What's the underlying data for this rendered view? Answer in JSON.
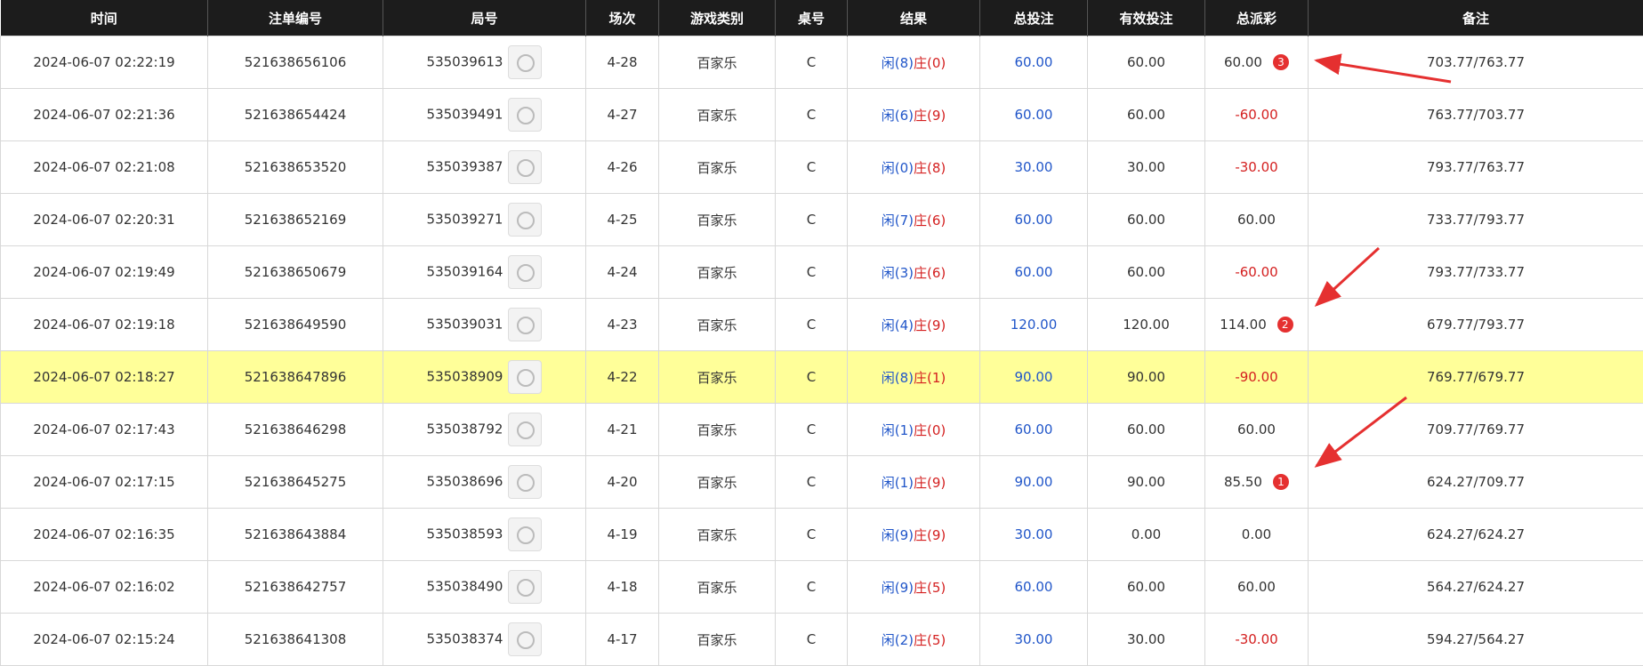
{
  "header": [
    "时间",
    "注单编号",
    "局号",
    "场次",
    "游戏类别",
    "桌号",
    "结果",
    "总投注",
    "有效投注",
    "总派彩",
    "备注"
  ],
  "rows": [
    {
      "time": "2024-06-07 02:22:19",
      "order": "521638656106",
      "round": "535039613",
      "session": "4-28",
      "game": "百家乐",
      "table": "C",
      "player": "闲(8)",
      "banker": "庄(0)",
      "bet": "60.00",
      "valid": "60.00",
      "payout": "60.00",
      "badge": "3",
      "note": "703.77/763.77"
    },
    {
      "time": "2024-06-07 02:21:36",
      "order": "521638654424",
      "round": "535039491",
      "session": "4-27",
      "game": "百家乐",
      "table": "C",
      "player": "闲(6)",
      "banker": "庄(9)",
      "bet": "60.00",
      "valid": "60.00",
      "payout": "-60.00",
      "note": "763.77/703.77"
    },
    {
      "time": "2024-06-07 02:21:08",
      "order": "521638653520",
      "round": "535039387",
      "session": "4-26",
      "game": "百家乐",
      "table": "C",
      "player": "闲(0)",
      "banker": "庄(8)",
      "bet": "30.00",
      "valid": "30.00",
      "payout": "-30.00",
      "note": "793.77/763.77"
    },
    {
      "time": "2024-06-07 02:20:31",
      "order": "521638652169",
      "round": "535039271",
      "session": "4-25",
      "game": "百家乐",
      "table": "C",
      "player": "闲(7)",
      "banker": "庄(6)",
      "bet": "60.00",
      "valid": "60.00",
      "payout": "60.00",
      "note": "733.77/793.77"
    },
    {
      "time": "2024-06-07 02:19:49",
      "order": "521638650679",
      "round": "535039164",
      "session": "4-24",
      "game": "百家乐",
      "table": "C",
      "player": "闲(3)",
      "banker": "庄(6)",
      "bet": "60.00",
      "valid": "60.00",
      "payout": "-60.00",
      "note": "793.77/733.77"
    },
    {
      "time": "2024-06-07 02:19:18",
      "order": "521638649590",
      "round": "535039031",
      "session": "4-23",
      "game": "百家乐",
      "table": "C",
      "player": "闲(4)",
      "banker": "庄(9)",
      "bet": "120.00",
      "valid": "120.00",
      "payout": "114.00",
      "badge": "2",
      "note": "679.77/793.77"
    },
    {
      "time": "2024-06-07 02:18:27",
      "order": "521638647896",
      "round": "535038909",
      "session": "4-22",
      "game": "百家乐",
      "table": "C",
      "player": "闲(8)",
      "banker": "庄(1)",
      "bet": "90.00",
      "valid": "90.00",
      "payout": "-90.00",
      "note": "769.77/679.77"
    },
    {
      "time": "2024-06-07 02:17:43",
      "order": "521638646298",
      "round": "535038792",
      "session": "4-21",
      "game": "百家乐",
      "table": "C",
      "player": "闲(1)",
      "banker": "庄(0)",
      "bet": "60.00",
      "valid": "60.00",
      "payout": "60.00",
      "note": "709.77/769.77"
    },
    {
      "time": "2024-06-07 02:17:15",
      "order": "521638645275",
      "round": "535038696",
      "session": "4-20",
      "game": "百家乐",
      "table": "C",
      "player": "闲(1)",
      "banker": "庄(9)",
      "bet": "90.00",
      "valid": "90.00",
      "payout": "85.50",
      "badge": "1",
      "note": "624.27/709.77"
    },
    {
      "time": "2024-06-07 02:16:35",
      "order": "521638643884",
      "round": "535038593",
      "session": "4-19",
      "game": "百家乐",
      "table": "C",
      "player": "闲(9)",
      "banker": "庄(9)",
      "bet": "30.00",
      "valid": "0.00",
      "payout": "0.00",
      "note": "624.27/624.27"
    },
    {
      "time": "2024-06-07 02:16:02",
      "order": "521638642757",
      "round": "535038490",
      "session": "4-18",
      "game": "百家乐",
      "table": "C",
      "player": "闲(9)",
      "banker": "庄(5)",
      "bet": "60.00",
      "valid": "60.00",
      "payout": "60.00",
      "note": "564.27/624.27"
    },
    {
      "time": "2024-06-07 02:15:24",
      "order": "521638641308",
      "round": "535038374",
      "session": "4-17",
      "game": "百家乐",
      "table": "C",
      "player": "闲(2)",
      "banker": "庄(5)",
      "bet": "30.00",
      "valid": "30.00",
      "payout": "-30.00",
      "note": "594.27/564.27"
    }
  ]
}
